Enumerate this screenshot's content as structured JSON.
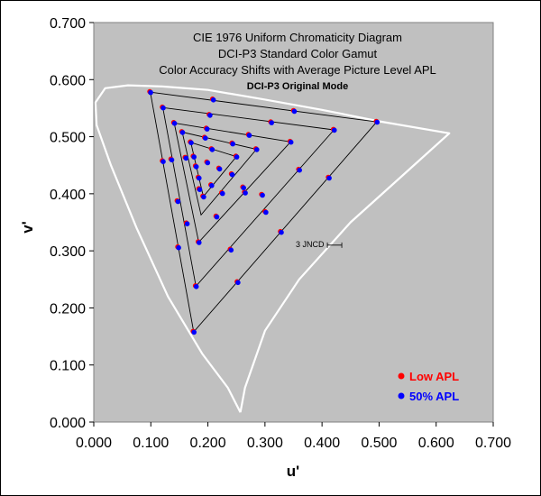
{
  "chart_data": {
    "type": "scatter",
    "title_lines": [
      "CIE 1976 Uniform Chromaticity Diagram",
      "DCI-P3 Standard Color Gamut",
      "Color Accuracy Shifts with Average Picture Level APL"
    ],
    "subtitle": "DCI-P3 Original Mode",
    "xlabel": "u'",
    "ylabel": "v'",
    "xlim": [
      0,
      0.7
    ],
    "ylim": [
      0,
      0.7
    ],
    "xticks": [
      "0.000",
      "0.100",
      "0.200",
      "0.300",
      "0.400",
      "0.500",
      "0.600",
      "0.700"
    ],
    "yticks": [
      "0.000",
      "0.100",
      "0.200",
      "0.300",
      "0.400",
      "0.500",
      "0.600",
      "0.700"
    ],
    "plot_background": "#c0c0c0",
    "annotation": "3 JNCD",
    "jncd_marker": {
      "u": 0.422,
      "v": 0.31
    },
    "spectral_locus": [
      [
        0.257,
        0.017
      ],
      [
        0.235,
        0.06
      ],
      [
        0.19,
        0.12
      ],
      [
        0.13,
        0.22
      ],
      [
        0.075,
        0.34
      ],
      [
        0.03,
        0.45
      ],
      [
        0.005,
        0.52
      ],
      [
        0.003,
        0.56
      ],
      [
        0.02,
        0.585
      ],
      [
        0.06,
        0.59
      ],
      [
        0.12,
        0.588
      ],
      [
        0.2,
        0.582
      ],
      [
        0.3,
        0.565
      ],
      [
        0.4,
        0.547
      ],
      [
        0.5,
        0.527
      ],
      [
        0.623,
        0.506
      ],
      [
        0.55,
        0.44
      ],
      [
        0.45,
        0.35
      ],
      [
        0.36,
        0.25
      ],
      [
        0.3,
        0.16
      ],
      [
        0.265,
        0.06
      ],
      [
        0.257,
        0.017
      ]
    ],
    "triangles": [
      [
        [
          0.099,
          0.578
        ],
        [
          0.496,
          0.526
        ],
        [
          0.175,
          0.158
        ]
      ],
      [
        [
          0.121,
          0.551
        ],
        [
          0.421,
          0.512
        ],
        [
          0.179,
          0.238
        ]
      ],
      [
        [
          0.141,
          0.524
        ],
        [
          0.345,
          0.491
        ],
        [
          0.184,
          0.315
        ]
      ],
      [
        [
          0.155,
          0.508
        ],
        [
          0.285,
          0.478
        ],
        [
          0.188,
          0.363
        ]
      ],
      [
        [
          0.17,
          0.49
        ],
        [
          0.25,
          0.465
        ],
        [
          0.192,
          0.395
        ]
      ]
    ],
    "legend": [
      {
        "label": "Low APL",
        "color": "#ff0000"
      },
      {
        "label": "50% APL",
        "color": "#0000ff"
      }
    ],
    "series": [
      {
        "name": "Low APL",
        "color": "#ff0000",
        "points": [
          [
            0.099,
            0.578
          ],
          [
            0.209,
            0.565
          ],
          [
            0.351,
            0.545
          ],
          [
            0.496,
            0.526
          ],
          [
            0.121,
            0.551
          ],
          [
            0.203,
            0.538
          ],
          [
            0.311,
            0.525
          ],
          [
            0.421,
            0.512
          ],
          [
            0.141,
            0.524
          ],
          [
            0.198,
            0.514
          ],
          [
            0.272,
            0.503
          ],
          [
            0.345,
            0.491
          ],
          [
            0.155,
            0.508
          ],
          [
            0.195,
            0.498
          ],
          [
            0.243,
            0.488
          ],
          [
            0.285,
            0.478
          ],
          [
            0.17,
            0.49
          ],
          [
            0.207,
            0.478
          ],
          [
            0.25,
            0.465
          ],
          [
            0.121,
            0.457
          ],
          [
            0.136,
            0.46
          ],
          [
            0.161,
            0.463
          ],
          [
            0.175,
            0.465
          ],
          [
            0.179,
            0.448
          ],
          [
            0.199,
            0.455
          ],
          [
            0.22,
            0.444
          ],
          [
            0.242,
            0.434
          ],
          [
            0.262,
            0.411
          ],
          [
            0.295,
            0.398
          ],
          [
            0.36,
            0.442
          ],
          [
            0.412,
            0.428
          ],
          [
            0.184,
            0.428
          ],
          [
            0.185,
            0.408
          ],
          [
            0.192,
            0.395
          ],
          [
            0.206,
            0.415
          ],
          [
            0.225,
            0.401
          ],
          [
            0.265,
            0.402
          ],
          [
            0.147,
            0.387
          ],
          [
            0.163,
            0.348
          ],
          [
            0.215,
            0.36
          ],
          [
            0.301,
            0.368
          ],
          [
            0.328,
            0.333
          ],
          [
            0.148,
            0.306
          ],
          [
            0.184,
            0.315
          ],
          [
            0.24,
            0.302
          ],
          [
            0.179,
            0.238
          ],
          [
            0.252,
            0.245
          ],
          [
            0.175,
            0.158
          ]
        ]
      },
      {
        "name": "50% APL",
        "color": "#0000ff",
        "points": [
          [
            0.099,
            0.578
          ],
          [
            0.209,
            0.565
          ],
          [
            0.351,
            0.545
          ],
          [
            0.496,
            0.526
          ],
          [
            0.121,
            0.551
          ],
          [
            0.203,
            0.538
          ],
          [
            0.311,
            0.525
          ],
          [
            0.421,
            0.512
          ],
          [
            0.141,
            0.524
          ],
          [
            0.198,
            0.514
          ],
          [
            0.272,
            0.503
          ],
          [
            0.345,
            0.491
          ],
          [
            0.155,
            0.508
          ],
          [
            0.195,
            0.498
          ],
          [
            0.243,
            0.488
          ],
          [
            0.285,
            0.478
          ],
          [
            0.17,
            0.49
          ],
          [
            0.207,
            0.478
          ],
          [
            0.25,
            0.465
          ],
          [
            0.121,
            0.457
          ],
          [
            0.136,
            0.46
          ],
          [
            0.161,
            0.463
          ],
          [
            0.175,
            0.465
          ],
          [
            0.179,
            0.448
          ],
          [
            0.199,
            0.455
          ],
          [
            0.22,
            0.444
          ],
          [
            0.242,
            0.434
          ],
          [
            0.262,
            0.411
          ],
          [
            0.295,
            0.398
          ],
          [
            0.36,
            0.442
          ],
          [
            0.412,
            0.428
          ],
          [
            0.184,
            0.428
          ],
          [
            0.185,
            0.408
          ],
          [
            0.192,
            0.395
          ],
          [
            0.206,
            0.415
          ],
          [
            0.225,
            0.401
          ],
          [
            0.265,
            0.402
          ],
          [
            0.147,
            0.387
          ],
          [
            0.163,
            0.348
          ],
          [
            0.215,
            0.36
          ],
          [
            0.301,
            0.368
          ],
          [
            0.328,
            0.333
          ],
          [
            0.148,
            0.306
          ],
          [
            0.184,
            0.315
          ],
          [
            0.24,
            0.302
          ],
          [
            0.179,
            0.238
          ],
          [
            0.252,
            0.245
          ],
          [
            0.175,
            0.158
          ]
        ]
      }
    ]
  }
}
